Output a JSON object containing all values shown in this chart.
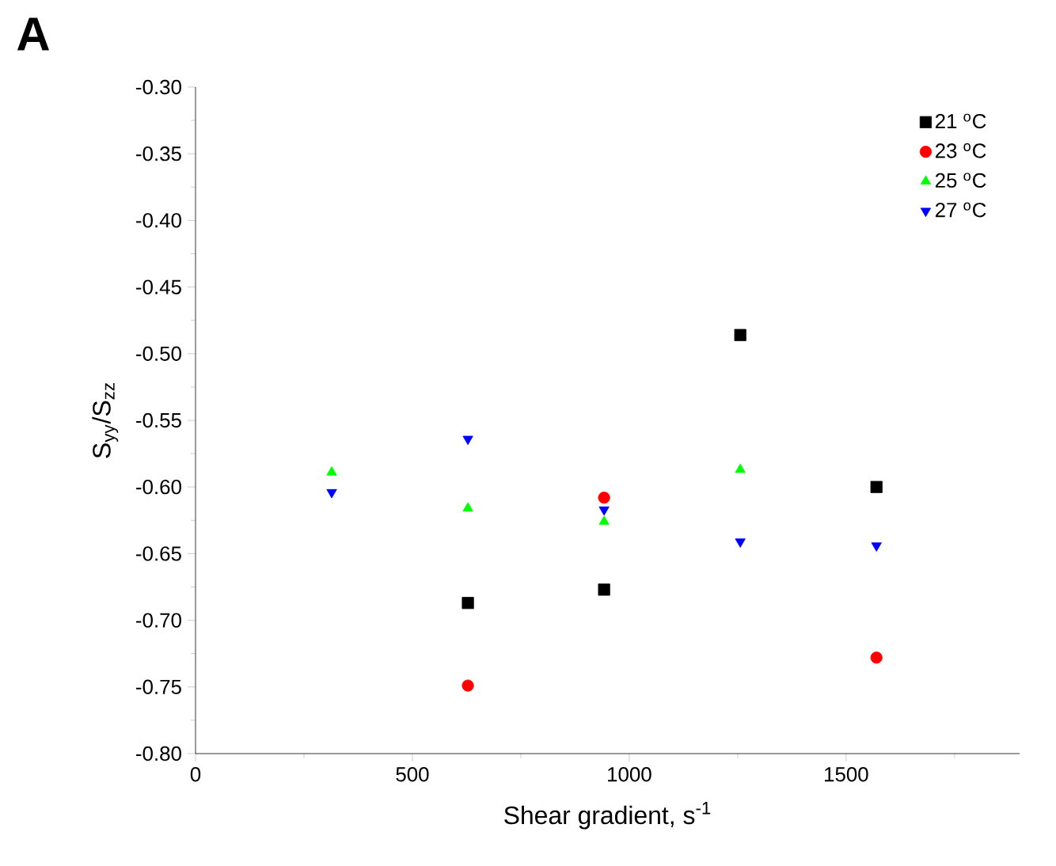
{
  "chart_data": {
    "type": "scatter",
    "title": "A",
    "xlabel": "Shear gradient, s$^{-1}$",
    "ylabel": "S$_{yy}$/S$_{zz}$",
    "xlim": [
      0,
      1900
    ],
    "ylim": [
      -0.8,
      -0.3
    ],
    "xticks": [
      0,
      {
        "value": 250,
        "label": null
      },
      500,
      {
        "value": 750,
        "label": null
      },
      1000,
      {
        "value": 1250,
        "label": null
      },
      1500,
      {
        "value": 1750,
        "label": null
      }
    ],
    "yticks": [
      {
        "value": -0.8,
        "label": "-0.80"
      },
      {
        "value": -0.775,
        "label": null
      },
      {
        "value": -0.75,
        "label": "-0.75"
      },
      {
        "value": -0.725,
        "label": null
      },
      {
        "value": -0.7,
        "label": "-0.70"
      },
      {
        "value": -0.675,
        "label": null
      },
      {
        "value": -0.65,
        "label": "-0.65"
      },
      {
        "value": -0.625,
        "label": null
      },
      {
        "value": -0.6,
        "label": "-0.60"
      },
      {
        "value": -0.575,
        "label": null
      },
      {
        "value": -0.55,
        "label": "-0.55"
      },
      {
        "value": -0.525,
        "label": null
      },
      {
        "value": -0.5,
        "label": "-0.50"
      },
      {
        "value": -0.475,
        "label": null
      },
      {
        "value": -0.45,
        "label": "-0.45"
      },
      {
        "value": -0.425,
        "label": null
      },
      {
        "value": -0.4,
        "label": "-0.40"
      },
      {
        "value": -0.375,
        "label": null
      },
      {
        "value": -0.35,
        "label": "-0.35"
      },
      {
        "value": -0.325,
        "label": null
      },
      {
        "value": -0.3,
        "label": "-0.30"
      }
    ],
    "grid": false,
    "legend": "top right",
    "series": [
      {
        "name": "21 $^{o}$C",
        "color": "#000000",
        "marker": "square",
        "x": [
          628,
          942,
          1256,
          1570
        ],
        "values": [
          -0.687,
          -0.677,
          -0.486,
          -0.6
        ]
      },
      {
        "name": "23 $^{o}$C",
        "color": "#ff0000",
        "marker": "circle",
        "x": [
          628,
          942,
          1570
        ],
        "values": [
          -0.749,
          -0.608,
          -0.728
        ]
      },
      {
        "name": "25 $^{o}$C",
        "color": "#00ff00",
        "marker": "triangle",
        "x": [
          314,
          628,
          942,
          1256
        ],
        "values": [
          -0.589,
          -0.616,
          -0.626,
          -0.587
        ]
      },
      {
        "name": "27 $^{o}$C",
        "color": "#0000ff",
        "marker": "triangle_down",
        "x": [
          314,
          628,
          942,
          1256,
          1570
        ],
        "values": [
          -0.604,
          -0.564,
          -0.617,
          -0.641,
          -0.644
        ]
      }
    ]
  }
}
